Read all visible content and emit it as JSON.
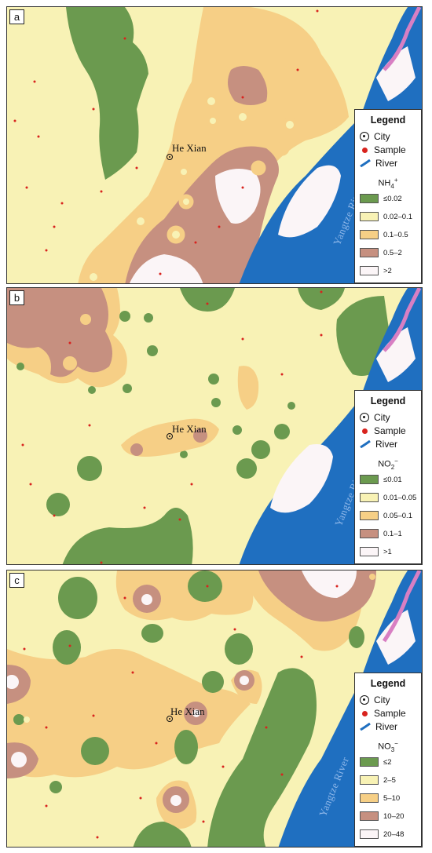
{
  "colors": {
    "green": "#6b9a4f",
    "yellow": "#f8f2b5",
    "orange": "#f6cf86",
    "brown": "#c69080",
    "white": "#fbf5f7",
    "river": "#1f6fc0",
    "pink": "#d87fc3",
    "sample": "#d8231e"
  },
  "legend_common": {
    "title": "Legend",
    "city": "City",
    "sample": "Sample",
    "river": "River"
  },
  "panels": [
    {
      "label": "a",
      "param": "NH",
      "param_sub": "4",
      "param_sup": "+",
      "city_name": "He Xian",
      "river_name": "Yangtze River",
      "classes": [
        "≤0.02",
        "0.02–0.1",
        "0.1–0.5",
        "0.5–2",
        ">2"
      ]
    },
    {
      "label": "b",
      "param": "NO",
      "param_sub": "2",
      "param_sup": "−",
      "city_name": "He Xian",
      "river_name": "Yangtze River",
      "classes": [
        "≤0.01",
        "0.01–0.05",
        "0.05–0.1",
        "0.1–1",
        ">1"
      ]
    },
    {
      "label": "c",
      "param": "NO",
      "param_sub": "3",
      "param_sup": "−",
      "city_name": "He Xian",
      "river_name": "Yangtze River",
      "classes": [
        "≤2",
        "2–5",
        "5–10",
        "10–20",
        "20–48"
      ]
    }
  ]
}
